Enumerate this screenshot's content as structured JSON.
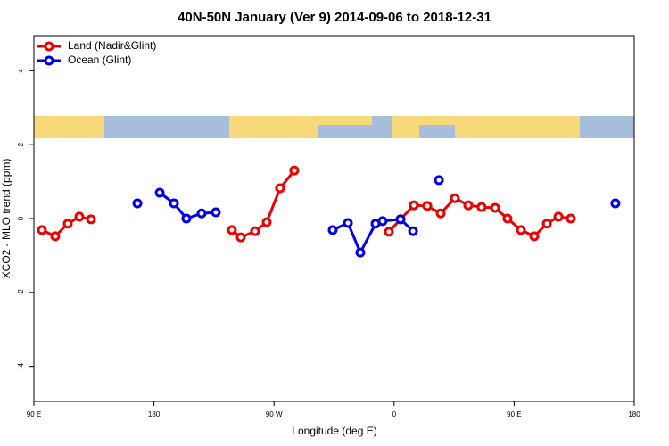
{
  "chart_data": {
    "type": "line",
    "title": "40N-50N January (Ver 9)   2014-09-06 to 2018-12-31",
    "x_label": "Longitude (deg E)",
    "y_label": "XCO2 - MLO trend (ppm)",
    "xlim": [
      90,
      540
    ],
    "xticks": [
      {
        "value": 90,
        "label": "90 E"
      },
      {
        "value": 180,
        "label": "180"
      },
      {
        "value": 270,
        "label": "90 W"
      },
      {
        "value": 360,
        "label": "0"
      },
      {
        "value": 450,
        "label": "90 E"
      },
      {
        "value": 540,
        "label": "180"
      }
    ],
    "ylim": [
      -4.95,
      4.95
    ],
    "yticks": [
      -4,
      -2,
      0,
      2,
      4
    ],
    "legend": "top-left",
    "series": [
      {
        "name": "Land (Nadir&Glint)",
        "color": "#ee0000",
        "x": [
          96.0,
          106.0,
          115.4,
          124.1,
          132.8,
          null,
          238.4,
          245.1,
          255.8,
          264.5,
          274.5,
          285.2,
          null,
          356.1,
          364.8,
          374.8,
          384.9,
          394.9,
          405.6,
          415.6,
          425.6,
          435.7,
          445.0,
          455.1,
          465.1,
          474.5,
          483.2,
          492.5
        ],
        "values": [
          -0.31,
          -0.48,
          -0.14,
          0.05,
          -0.02,
          null,
          -0.31,
          -0.51,
          -0.34,
          -0.1,
          0.82,
          1.3,
          null,
          -0.36,
          -0.02,
          0.36,
          0.34,
          0.14,
          0.55,
          0.36,
          0.31,
          0.29,
          0.0,
          -0.31,
          -0.48,
          -0.14,
          0.05,
          0.0
        ]
      },
      {
        "name": "Ocean (Glint)",
        "color": "#0000ee",
        "x": [
          167.6,
          null,
          184.3,
          195.0,
          204.3,
          215.7,
          226.4,
          null,
          314.0,
          325.4,
          334.7,
          346.1,
          351.4,
          364.8,
          374.2,
          null,
          393.6,
          null,
          525.9
        ],
        "values": [
          0.41,
          null,
          0.7,
          0.41,
          0.0,
          0.14,
          0.17,
          null,
          -0.31,
          -0.12,
          -0.92,
          -0.14,
          -0.07,
          -0.02,
          -0.34,
          null,
          1.04,
          null,
          0.41
        ]
      }
    ]
  }
}
